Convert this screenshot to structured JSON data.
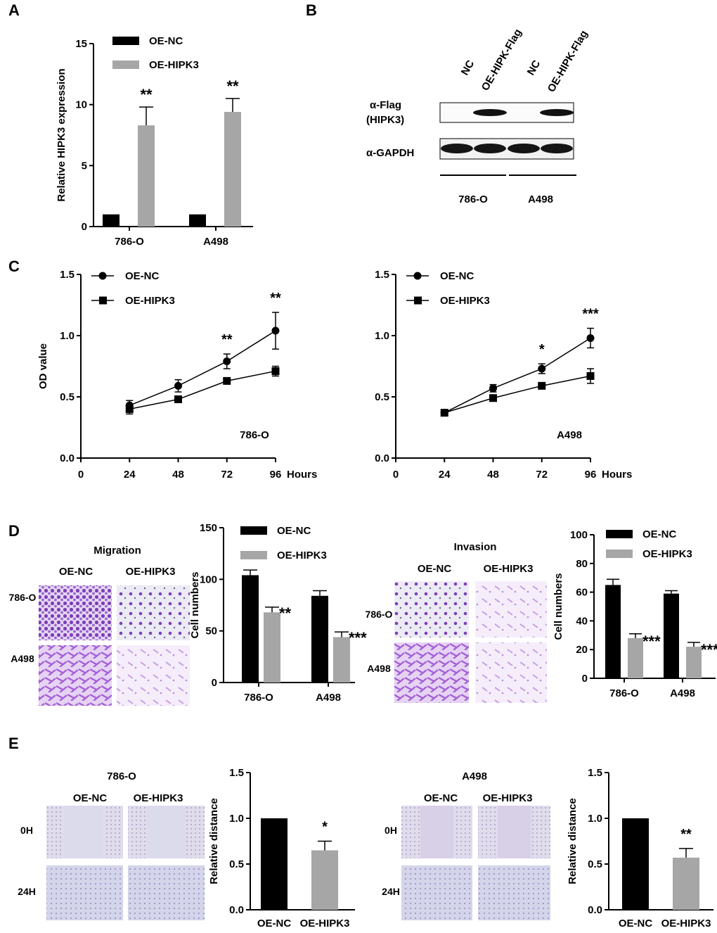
{
  "colors": {
    "black": "#000000",
    "grey": "#a6a6a6",
    "stain": "#8a4fc4",
    "stain_light": "#c7a3e2",
    "scratch": "#b7b4dd"
  },
  "panel_labels": {
    "a": "A",
    "b": "B",
    "c": "C",
    "d": "D",
    "e": "E"
  },
  "chart_data": [
    {
      "id": "A",
      "type": "bar",
      "categories": [
        "786-O",
        "A498"
      ],
      "series": [
        {
          "name": "OE-NC",
          "values": [
            1.0,
            1.0
          ],
          "errors": [
            0,
            0
          ]
        },
        {
          "name": "OE-HIPK3",
          "values": [
            8.3,
            9.4
          ],
          "errors": [
            1.5,
            1.1
          ]
        }
      ],
      "significance": [
        "**",
        "**"
      ],
      "ylabel": "Relative HIPK3 expression",
      "xlabel": "",
      "ylim": [
        0,
        15
      ],
      "yticks": [
        "0",
        "5",
        "10",
        "15"
      ]
    },
    {
      "id": "C-786-O",
      "type": "line",
      "x": [
        24,
        48,
        72,
        96
      ],
      "series": [
        {
          "name": "OE-NC",
          "marker": "circle",
          "values": [
            0.43,
            0.59,
            0.79,
            1.04
          ],
          "errors": [
            0.04,
            0.05,
            0.06,
            0.15
          ]
        },
        {
          "name": "OE-HIPK3",
          "marker": "square",
          "values": [
            0.4,
            0.48,
            0.63,
            0.71
          ],
          "errors": [
            0.04,
            0.02,
            0.02,
            0.04
          ]
        }
      ],
      "significance": [
        "",
        "",
        "**",
        "**"
      ],
      "xticks": [
        "0",
        "24",
        "48",
        "72",
        "96"
      ],
      "xlabel": "Hours",
      "ylabel": "OD value",
      "ylim": [
        0,
        1.5
      ],
      "yticks": [
        "0.0",
        "0.5",
        "1.0",
        "1.5"
      ],
      "annotation": "786-O"
    },
    {
      "id": "C-A498",
      "type": "line",
      "x": [
        24,
        48,
        72,
        96
      ],
      "series": [
        {
          "name": "OE-NC",
          "marker": "circle",
          "values": [
            0.37,
            0.57,
            0.73,
            0.98
          ],
          "errors": [
            0.02,
            0.03,
            0.04,
            0.08
          ]
        },
        {
          "name": "OE-HIPK3",
          "marker": "square",
          "values": [
            0.37,
            0.49,
            0.59,
            0.67
          ],
          "errors": [
            0.02,
            0.02,
            0.02,
            0.06
          ]
        }
      ],
      "significance": [
        "",
        "",
        "*",
        "***"
      ],
      "xticks": [
        "0",
        "24",
        "48",
        "72",
        "96"
      ],
      "xlabel": "Hours",
      "ylabel": "",
      "ylim": [
        0,
        1.5
      ],
      "yticks": [
        "0.0",
        "0.5",
        "1.0",
        "1.5"
      ],
      "annotation": "A498"
    },
    {
      "id": "D-migration",
      "type": "bar",
      "categories": [
        "786-O",
        "A498"
      ],
      "series": [
        {
          "name": "OE-NC",
          "values": [
            104,
            84
          ],
          "errors": [
            5,
            5
          ]
        },
        {
          "name": "OE-HIPK3",
          "values": [
            68,
            44
          ],
          "errors": [
            5,
            5
          ]
        }
      ],
      "significance": [
        "**",
        "***"
      ],
      "ylabel": "Cell numbers",
      "ylim": [
        0,
        150
      ],
      "yticks": [
        "0",
        "50",
        "100",
        "150"
      ]
    },
    {
      "id": "D-invasion",
      "type": "bar",
      "categories": [
        "786-O",
        "A498"
      ],
      "series": [
        {
          "name": "OE-NC",
          "values": [
            65,
            59
          ],
          "errors": [
            4,
            2
          ]
        },
        {
          "name": "OE-HIPK3",
          "values": [
            28,
            22
          ],
          "errors": [
            3,
            3
          ]
        }
      ],
      "significance": [
        "***",
        "***"
      ],
      "ylabel": "Cell numbers",
      "ylim": [
        0,
        100
      ],
      "yticks": [
        "0",
        "20",
        "40",
        "60",
        "80",
        "100"
      ]
    },
    {
      "id": "E-786-O",
      "type": "bar",
      "categories": [
        "OE-NC",
        "OE-HIPK3"
      ],
      "values": [
        1.0,
        0.65
      ],
      "errors": [
        0,
        0.1
      ],
      "significance": [
        "",
        "*"
      ],
      "ylabel": "Relative distance",
      "ylim": [
        0,
        1.5
      ],
      "yticks": [
        "0.0",
        "0.5",
        "1.0",
        "1.5"
      ]
    },
    {
      "id": "E-A498",
      "type": "bar",
      "categories": [
        "OE-NC",
        "OE-HIPK3"
      ],
      "values": [
        1.0,
        0.57
      ],
      "errors": [
        0,
        0.1
      ],
      "significance": [
        "",
        "**"
      ],
      "ylabel": "Relative distance",
      "ylim": [
        0,
        1.5
      ],
      "yticks": [
        "0.0",
        "0.5",
        "1.0",
        "1.5"
      ]
    }
  ],
  "western": {
    "lanes": [
      "NC",
      "OE-HIPK-Flag",
      "NC",
      "OE-HIPK-Flag"
    ],
    "row1": "α-Flag",
    "row1b": "(HIPK3)",
    "row2": "α-GAPDH",
    "groups": [
      "786-O",
      "A498"
    ]
  },
  "migration": {
    "title": "Migration",
    "col1": "OE-NC",
    "col2": "OE-HIPK3",
    "row1": "786-O",
    "row2": "A498"
  },
  "invasion": {
    "title": "Invasion",
    "col1": "OE-NC",
    "col2": "OE-HIPK3",
    "row1": "786-O",
    "row2": "A498"
  },
  "wound1": {
    "title": "786-O",
    "col1": "OE-NC",
    "col2": "OE-HIPK3",
    "row1": "0H",
    "row2": "24H"
  },
  "wound2": {
    "title": "A498",
    "col1": "OE-NC",
    "col2": "OE-HIPK3",
    "row1": "0H",
    "row2": "24H"
  }
}
